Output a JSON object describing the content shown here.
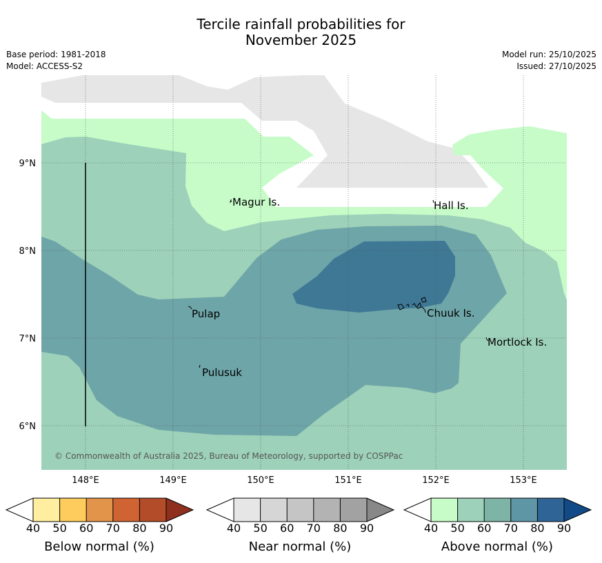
{
  "title": {
    "line1": "Tercile rainfall probabilities for",
    "line2": "November 2025"
  },
  "meta_left": {
    "base_period": "Base period: 1981-2018",
    "model": "Model: ACCESS-S2"
  },
  "meta_right": {
    "model_run": "Model run: 25/10/2025",
    "issued": "Issued: 27/10/2025"
  },
  "map": {
    "lat_labels": [
      "9°N",
      "8°N",
      "7°N",
      "6°N"
    ],
    "lon_labels": [
      "148°E",
      "149°E",
      "150°E",
      "151°E",
      "152°E",
      "153°E"
    ],
    "places": [
      "Magur Is.",
      "Hall Is.",
      "Pulap",
      "Chuuk Is.",
      "Mortlock Is.",
      "Pulusuk"
    ],
    "copyright": "© Commonwealth of Australia 2025, Bureau of Meteorology, supported by COSPPac"
  },
  "legends": [
    {
      "name": "Below normal (%)",
      "ticks": [
        "40",
        "50",
        "60",
        "70",
        "80",
        "90"
      ],
      "colors": [
        "#ffeda0",
        "#fecc5c",
        "#e2944a",
        "#cf6432",
        "#b34c28",
        "#8f2f1e"
      ]
    },
    {
      "name": "Near normal (%)",
      "ticks": [
        "40",
        "50",
        "60",
        "70",
        "80",
        "90"
      ],
      "colors": [
        "#e6e6e6",
        "#d6d6d6",
        "#c5c5c5",
        "#b3b3b3",
        "#a2a2a2",
        "#888888"
      ]
    },
    {
      "name": "Above normal (%)",
      "ticks": [
        "40",
        "50",
        "60",
        "70",
        "80",
        "90"
      ],
      "colors": [
        "#c7fcc9",
        "#9dd1b9",
        "#7db4a6",
        "#5e96a6",
        "#2f6497",
        "#114a86"
      ]
    }
  ],
  "colors": {
    "gray_near": "#e6e6e6",
    "green_40": "#c7fcc9",
    "green_50": "#9dd1b9",
    "teal_60": "#6ea5a8",
    "blue_70": "#3f7895"
  }
}
